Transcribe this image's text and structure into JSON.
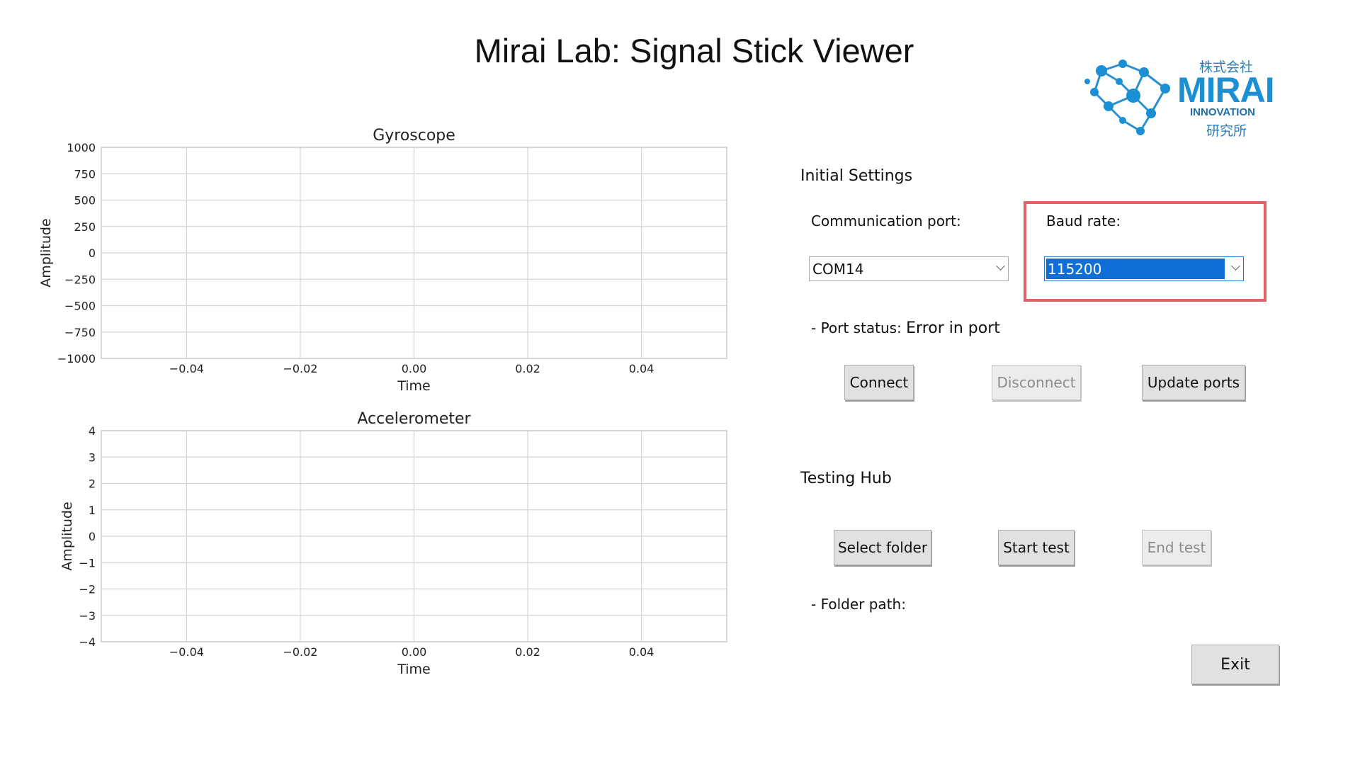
{
  "app": {
    "title": "Mirai Lab: Signal Stick Viewer"
  },
  "logo": {
    "jp_top": "株式会社",
    "word": "MIRAI",
    "subtitle": "INNOVATION",
    "jp_bottom": "研究所"
  },
  "charts": [
    {
      "title": "Gyroscope",
      "xlabel": "Time",
      "ylabel": "Amplitude",
      "xticks": [
        "−0.04",
        "−0.02",
        "0.00",
        "0.02",
        "0.04"
      ],
      "yticks": [
        "1000",
        "750",
        "500",
        "250",
        "0",
        "−250",
        "−500",
        "−750",
        "−1000"
      ]
    },
    {
      "title": "Accelerometer",
      "xlabel": "Time",
      "ylabel": "Amplitude",
      "xticks": [
        "−0.04",
        "−0.02",
        "0.00",
        "0.02",
        "0.04"
      ],
      "yticks": [
        "4",
        "3",
        "2",
        "1",
        "0",
        "−1",
        "−2",
        "−3",
        "−4"
      ]
    }
  ],
  "chart_data": [
    {
      "type": "line",
      "title": "Gyroscope",
      "xlabel": "Time",
      "ylabel": "Amplitude",
      "xlim": [
        -0.055,
        0.055
      ],
      "ylim": [
        -1000,
        1000
      ],
      "grid": true,
      "series": []
    },
    {
      "type": "line",
      "title": "Accelerometer",
      "xlabel": "Time",
      "ylabel": "Amplitude",
      "xlim": [
        -0.055,
        0.055
      ],
      "ylim": [
        -4,
        4
      ],
      "grid": true,
      "series": []
    }
  ],
  "settings": {
    "title": "Initial Settings",
    "comm_port_label": "Communication port:",
    "comm_port_value": "COM14",
    "baud_label": "Baud rate:",
    "baud_value": "115200",
    "port_status_label": "- Port status:",
    "port_status_value": "Error in port",
    "connect": "Connect",
    "disconnect": "Disconnect",
    "update_ports": "Update ports"
  },
  "testing": {
    "title": "Testing Hub",
    "select_folder": "Select folder",
    "start_test": "Start test",
    "end_test": "End test",
    "folder_path_label": "- Folder path:",
    "exit": "Exit"
  },
  "colors": {
    "highlight": "#e5616a",
    "selection": "#0f6fd6",
    "logo_blue": "#1a8fd4"
  }
}
